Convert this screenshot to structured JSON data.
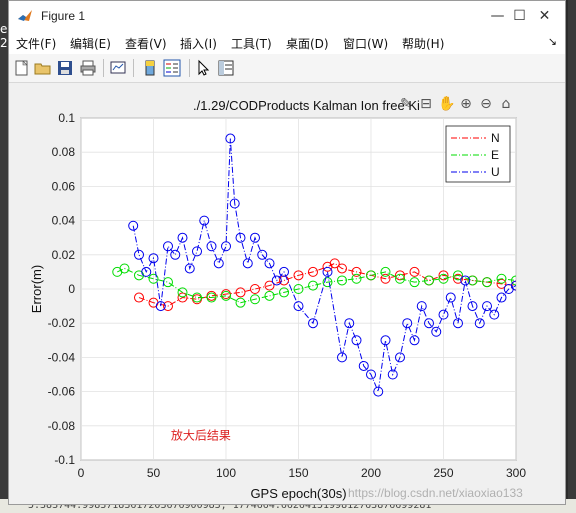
{
  "window": {
    "title": "Figure 1",
    "controls": [
      "—",
      "☐",
      "✕"
    ]
  },
  "menu": [
    "文件(F)",
    "编辑(E)",
    "查看(V)",
    "插入(I)",
    "工具(T)",
    "桌面(D)",
    "窗口(W)",
    "帮助(H)"
  ],
  "menu_arrow": "↘",
  "toolbar_icons": [
    "new-figure-icon",
    "open-file-icon",
    "save-icon",
    "print-icon",
    "link-plot-icon",
    "colorbar-icon",
    "legend-icon",
    "pointer-icon",
    "property-inspector-icon"
  ],
  "axes_toolbar_icons": [
    "brush-icon",
    "data-tips-icon",
    "pan-icon",
    "zoom-in-icon",
    "zoom-out-icon",
    "home-icon"
  ],
  "left_edge_labels": [
    "e",
    "2)"
  ],
  "bottom_strip_text": "5.383744.99837183617203676900983, 1774664.6626415199812763876699281",
  "watermark": "https://blog.csdn.net/xiaoxiao133",
  "chart_data": {
    "type": "scatter",
    "title": "./1.29/CODProducts Kalman Ion free Ki",
    "xlabel": "GPS epoch(30s)",
    "ylabel": "Error(m)",
    "xlim": [
      0,
      300
    ],
    "ylim": [
      -0.1,
      0.1
    ],
    "xticks": [
      "0",
      "50",
      "100",
      "150",
      "200",
      "250",
      "300"
    ],
    "yticks": [
      "-0.1",
      "-0.08",
      "-0.06",
      "-0.04",
      "-0.02",
      "0",
      "0.02",
      "0.04",
      "0.06",
      "0.08",
      "0.1"
    ],
    "grid": true,
    "legend_position": "top-right",
    "annotation": "放大后结果",
    "series": [
      {
        "name": "N",
        "color": "#ff0000",
        "style": "-.",
        "marker": "o",
        "points": [
          [
            40,
            -0.005
          ],
          [
            50,
            -0.008
          ],
          [
            60,
            -0.01
          ],
          [
            70,
            -0.005
          ],
          [
            80,
            -0.006
          ],
          [
            90,
            -0.004
          ],
          [
            100,
            -0.003
          ],
          [
            110,
            -0.002
          ],
          [
            120,
            0.0
          ],
          [
            130,
            0.002
          ],
          [
            140,
            0.005
          ],
          [
            150,
            0.008
          ],
          [
            160,
            0.01
          ],
          [
            170,
            0.013
          ],
          [
            175,
            0.015
          ],
          [
            180,
            0.012
          ],
          [
            190,
            0.01
          ],
          [
            200,
            0.008
          ],
          [
            210,
            0.006
          ],
          [
            220,
            0.008
          ],
          [
            230,
            0.01
          ],
          [
            240,
            0.005
          ],
          [
            250,
            0.008
          ],
          [
            260,
            0.006
          ],
          [
            270,
            0.005
          ],
          [
            280,
            0.004
          ],
          [
            290,
            0.003
          ],
          [
            300,
            0.002
          ]
        ]
      },
      {
        "name": "E",
        "color": "#00dd00",
        "style": "-.",
        "marker": "o",
        "points": [
          [
            25,
            0.01
          ],
          [
            30,
            0.012
          ],
          [
            40,
            0.008
          ],
          [
            50,
            0.006
          ],
          [
            60,
            0.004
          ],
          [
            70,
            -0.002
          ],
          [
            80,
            -0.005
          ],
          [
            90,
            -0.005
          ],
          [
            100,
            -0.004
          ],
          [
            110,
            -0.008
          ],
          [
            120,
            -0.006
          ],
          [
            130,
            -0.004
          ],
          [
            140,
            -0.002
          ],
          [
            150,
            0.0
          ],
          [
            160,
            0.002
          ],
          [
            170,
            0.004
          ],
          [
            180,
            0.005
          ],
          [
            190,
            0.006
          ],
          [
            200,
            0.008
          ],
          [
            210,
            0.01
          ],
          [
            220,
            0.006
          ],
          [
            230,
            0.004
          ],
          [
            240,
            0.005
          ],
          [
            250,
            0.006
          ],
          [
            260,
            0.008
          ],
          [
            270,
            0.005
          ],
          [
            280,
            0.004
          ],
          [
            290,
            0.006
          ],
          [
            300,
            0.005
          ]
        ]
      },
      {
        "name": "U",
        "color": "#0000ee",
        "style": "-.",
        "marker": "o",
        "points": [
          [
            36,
            0.037
          ],
          [
            40,
            0.02
          ],
          [
            45,
            0.01
          ],
          [
            50,
            0.018
          ],
          [
            55,
            -0.01
          ],
          [
            60,
            0.025
          ],
          [
            65,
            0.02
          ],
          [
            70,
            0.03
          ],
          [
            75,
            0.012
          ],
          [
            80,
            0.022
          ],
          [
            85,
            0.04
          ],
          [
            90,
            0.025
          ],
          [
            95,
            0.015
          ],
          [
            100,
            0.025
          ],
          [
            103,
            0.088
          ],
          [
            106,
            0.05
          ],
          [
            110,
            0.03
          ],
          [
            115,
            0.015
          ],
          [
            120,
            0.03
          ],
          [
            125,
            0.02
          ],
          [
            130,
            0.015
          ],
          [
            135,
            0.005
          ],
          [
            140,
            0.01
          ],
          [
            150,
            -0.01
          ],
          [
            160,
            -0.02
          ],
          [
            170,
            0.01
          ],
          [
            180,
            -0.04
          ],
          [
            185,
            -0.02
          ],
          [
            190,
            -0.03
          ],
          [
            195,
            -0.045
          ],
          [
            200,
            -0.05
          ],
          [
            205,
            -0.06
          ],
          [
            210,
            -0.03
          ],
          [
            215,
            -0.05
          ],
          [
            220,
            -0.04
          ],
          [
            225,
            -0.02
          ],
          [
            230,
            -0.03
          ],
          [
            235,
            -0.01
          ],
          [
            240,
            -0.02
          ],
          [
            245,
            -0.025
          ],
          [
            250,
            -0.015
          ],
          [
            255,
            -0.005
          ],
          [
            260,
            -0.02
          ],
          [
            265,
            0.005
          ],
          [
            270,
            -0.01
          ],
          [
            275,
            -0.02
          ],
          [
            280,
            -0.01
          ],
          [
            285,
            -0.015
          ],
          [
            290,
            -0.005
          ],
          [
            295,
            0.0
          ],
          [
            300,
            0.002
          ]
        ]
      }
    ]
  }
}
